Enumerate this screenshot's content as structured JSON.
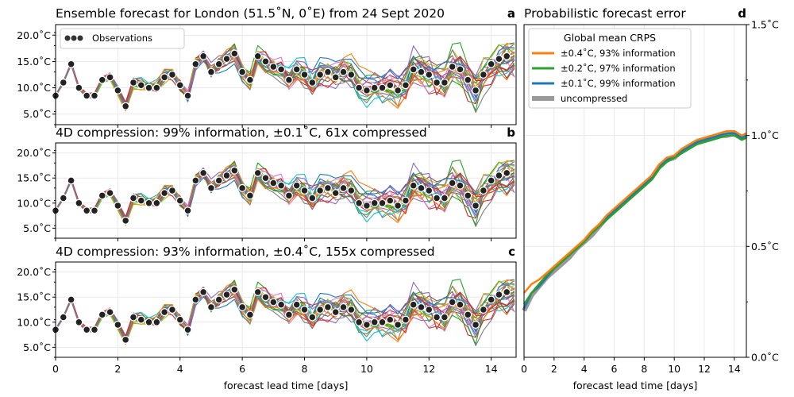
{
  "figure": {
    "shared_xlabel": "forecast lead time [days]",
    "colors": {
      "observations": "#222222",
      "crps_high": "#ff7f0e",
      "crps_mid": "#2ca02c",
      "crps_low": "#1f77b4",
      "crps_uncompressed": "#999999",
      "ensemble_palette": [
        "#1f77b4",
        "#ff7f0e",
        "#2ca02c",
        "#d62728",
        "#9467bd",
        "#8c564b",
        "#e377c2",
        "#7f7f7f",
        "#bcbd22",
        "#17becf"
      ]
    }
  },
  "chart_data": [
    {
      "type": "line",
      "panel": "a",
      "title": "Ensemble forecast for London (51.5˚N, 0˚E) from 24 Sept 2020",
      "xlabel": "",
      "ylabel": "",
      "xlim": [
        0,
        14.8
      ],
      "ylim": [
        3,
        22
      ],
      "yticks": [
        5,
        10,
        15,
        20
      ],
      "ytick_labels": [
        "5.0˚C",
        "10.0˚C",
        "15.0˚C",
        "20.0˚C"
      ],
      "xticks": [
        0,
        2,
        4,
        6,
        8,
        10,
        12,
        14
      ],
      "show_xtick_labels": false,
      "grid": true,
      "legend": {
        "position": "top-left",
        "entries": [
          "Observations"
        ]
      },
      "ensemble_members": 25,
      "observations": [
        [
          0.0,
          8.5
        ],
        [
          0.25,
          11.0
        ],
        [
          0.5,
          14.5
        ],
        [
          0.75,
          10.0
        ],
        [
          1.0,
          8.5
        ],
        [
          1.25,
          8.5
        ],
        [
          1.5,
          11.5
        ],
        [
          1.75,
          12.0
        ],
        [
          2.0,
          9.5
        ],
        [
          2.25,
          6.5
        ],
        [
          2.5,
          11.0
        ],
        [
          2.75,
          10.5
        ],
        [
          3.0,
          10.0
        ],
        [
          3.25,
          10.0
        ],
        [
          3.5,
          12.0
        ],
        [
          3.75,
          12.5
        ],
        [
          4.0,
          10.5
        ],
        [
          4.25,
          8.5
        ],
        [
          4.5,
          14.5
        ],
        [
          4.75,
          16.0
        ],
        [
          5.0,
          13.0
        ],
        [
          5.25,
          14.5
        ],
        [
          5.5,
          15.5
        ],
        [
          5.75,
          16.5
        ],
        [
          6.0,
          13.0
        ],
        [
          6.25,
          11.5
        ],
        [
          6.5,
          16.0
        ],
        [
          6.75,
          15.0
        ],
        [
          7.0,
          14.0
        ],
        [
          7.25,
          13.5
        ],
        [
          7.5,
          11.5
        ],
        [
          7.75,
          13.5
        ],
        [
          8.0,
          12.5
        ],
        [
          8.25,
          11.0
        ],
        [
          8.5,
          12.5
        ],
        [
          8.75,
          13.0
        ],
        [
          9.0,
          12.0
        ],
        [
          9.25,
          13.0
        ],
        [
          9.5,
          12.5
        ],
        [
          9.75,
          10.0
        ],
        [
          10.0,
          9.5
        ],
        [
          10.25,
          10.0
        ],
        [
          10.5,
          10.0
        ],
        [
          10.75,
          10.5
        ],
        [
          11.0,
          9.5
        ],
        [
          11.25,
          10.5
        ],
        [
          11.5,
          13.5
        ],
        [
          11.75,
          13.0
        ],
        [
          12.0,
          12.5
        ],
        [
          12.25,
          11.0
        ],
        [
          12.5,
          11.0
        ],
        [
          12.75,
          14.0
        ],
        [
          13.0,
          13.5
        ],
        [
          13.25,
          11.5
        ],
        [
          13.5,
          9.5
        ],
        [
          13.75,
          12.5
        ],
        [
          14.0,
          14.5
        ],
        [
          14.25,
          15.5
        ],
        [
          14.5,
          16.0
        ]
      ]
    },
    {
      "type": "line",
      "panel": "b",
      "title": "4D compression: 99% information, ±0.1˚C,  61x compressed",
      "xlabel": "",
      "ylabel": "",
      "xlim": [
        0,
        14.8
      ],
      "ylim": [
        3,
        22
      ],
      "yticks": [
        5,
        10,
        15,
        20
      ],
      "ytick_labels": [
        "5.0˚C",
        "10.0˚C",
        "15.0˚C",
        "20.0˚C"
      ],
      "xticks": [
        0,
        2,
        4,
        6,
        8,
        10,
        12,
        14
      ],
      "show_xtick_labels": false,
      "grid": true,
      "ensemble_members": 25,
      "observations": [
        [
          0.0,
          8.5
        ],
        [
          0.25,
          11.0
        ],
        [
          0.5,
          14.5
        ],
        [
          0.75,
          10.0
        ],
        [
          1.0,
          8.5
        ],
        [
          1.25,
          8.5
        ],
        [
          1.5,
          11.5
        ],
        [
          1.75,
          12.0
        ],
        [
          2.0,
          9.5
        ],
        [
          2.25,
          6.5
        ],
        [
          2.5,
          11.0
        ],
        [
          2.75,
          10.5
        ],
        [
          3.0,
          10.0
        ],
        [
          3.25,
          10.0
        ],
        [
          3.5,
          12.0
        ],
        [
          3.75,
          12.5
        ],
        [
          4.0,
          10.5
        ],
        [
          4.25,
          8.5
        ],
        [
          4.5,
          14.5
        ],
        [
          4.75,
          16.0
        ],
        [
          5.0,
          13.0
        ],
        [
          5.25,
          14.5
        ],
        [
          5.5,
          15.5
        ],
        [
          5.75,
          16.5
        ],
        [
          6.0,
          13.0
        ],
        [
          6.25,
          11.5
        ],
        [
          6.5,
          16.0
        ],
        [
          6.75,
          15.0
        ],
        [
          7.0,
          14.0
        ],
        [
          7.25,
          13.5
        ],
        [
          7.5,
          11.5
        ],
        [
          7.75,
          13.5
        ],
        [
          8.0,
          12.5
        ],
        [
          8.25,
          11.0
        ],
        [
          8.5,
          12.5
        ],
        [
          8.75,
          13.0
        ],
        [
          9.0,
          12.0
        ],
        [
          9.25,
          13.0
        ],
        [
          9.5,
          12.5
        ],
        [
          9.75,
          10.0
        ],
        [
          10.0,
          9.5
        ],
        [
          10.25,
          10.0
        ],
        [
          10.5,
          10.0
        ],
        [
          10.75,
          10.5
        ],
        [
          11.0,
          9.5
        ],
        [
          11.25,
          10.5
        ],
        [
          11.5,
          13.5
        ],
        [
          11.75,
          13.0
        ],
        [
          12.0,
          12.5
        ],
        [
          12.25,
          11.0
        ],
        [
          12.5,
          11.0
        ],
        [
          12.75,
          14.0
        ],
        [
          13.0,
          13.5
        ],
        [
          13.25,
          11.5
        ],
        [
          13.5,
          9.5
        ],
        [
          13.75,
          12.5
        ],
        [
          14.0,
          14.5
        ],
        [
          14.25,
          15.5
        ],
        [
          14.5,
          16.0
        ]
      ]
    },
    {
      "type": "line",
      "panel": "c",
      "title": "4D compression: 93% information, ±0.4˚C, 155x compressed",
      "xlabel": "forecast lead time [days]",
      "ylabel": "",
      "xlim": [
        0,
        14.8
      ],
      "ylim": [
        3,
        22
      ],
      "yticks": [
        5,
        10,
        15,
        20
      ],
      "ytick_labels": [
        "5.0˚C",
        "10.0˚C",
        "15.0˚C",
        "20.0˚C"
      ],
      "xticks": [
        0,
        2,
        4,
        6,
        8,
        10,
        12,
        14
      ],
      "xtick_labels": [
        "0",
        "2",
        "4",
        "6",
        "8",
        "10",
        "12",
        "14"
      ],
      "show_xtick_labels": true,
      "grid": true,
      "ensemble_members": 25,
      "observations": [
        [
          0.0,
          8.5
        ],
        [
          0.25,
          11.0
        ],
        [
          0.5,
          14.5
        ],
        [
          0.75,
          10.0
        ],
        [
          1.0,
          8.5
        ],
        [
          1.25,
          8.5
        ],
        [
          1.5,
          11.5
        ],
        [
          1.75,
          12.0
        ],
        [
          2.0,
          9.5
        ],
        [
          2.25,
          6.5
        ],
        [
          2.5,
          11.0
        ],
        [
          2.75,
          10.5
        ],
        [
          3.0,
          10.0
        ],
        [
          3.25,
          10.0
        ],
        [
          3.5,
          12.0
        ],
        [
          3.75,
          12.5
        ],
        [
          4.0,
          10.5
        ],
        [
          4.25,
          8.5
        ],
        [
          4.5,
          14.5
        ],
        [
          4.75,
          16.0
        ],
        [
          5.0,
          13.0
        ],
        [
          5.25,
          14.5
        ],
        [
          5.5,
          15.5
        ],
        [
          5.75,
          16.5
        ],
        [
          6.0,
          13.0
        ],
        [
          6.25,
          11.5
        ],
        [
          6.5,
          16.0
        ],
        [
          6.75,
          15.0
        ],
        [
          7.0,
          14.0
        ],
        [
          7.25,
          13.5
        ],
        [
          7.5,
          11.5
        ],
        [
          7.75,
          13.5
        ],
        [
          8.0,
          12.5
        ],
        [
          8.25,
          11.0
        ],
        [
          8.5,
          12.5
        ],
        [
          8.75,
          13.0
        ],
        [
          9.0,
          12.0
        ],
        [
          9.25,
          13.0
        ],
        [
          9.5,
          12.5
        ],
        [
          9.75,
          10.0
        ],
        [
          10.0,
          9.5
        ],
        [
          10.25,
          10.0
        ],
        [
          10.5,
          10.0
        ],
        [
          10.75,
          10.5
        ],
        [
          11.0,
          9.5
        ],
        [
          11.25,
          10.5
        ],
        [
          11.5,
          13.5
        ],
        [
          11.75,
          13.0
        ],
        [
          12.0,
          12.5
        ],
        [
          12.25,
          11.0
        ],
        [
          12.5,
          11.0
        ],
        [
          12.75,
          14.0
        ],
        [
          13.0,
          13.5
        ],
        [
          13.25,
          11.5
        ],
        [
          13.5,
          9.5
        ],
        [
          13.75,
          12.5
        ],
        [
          14.0,
          14.5
        ],
        [
          14.25,
          15.5
        ],
        [
          14.5,
          16.0
        ]
      ]
    },
    {
      "type": "line",
      "panel": "d",
      "title": "Probabilistic forecast error",
      "xlabel": "forecast lead time [days]",
      "ylabel": "",
      "xlim": [
        0,
        14.8
      ],
      "ylim": [
        0,
        1.5
      ],
      "yaxis_side": "right",
      "yticks": [
        0,
        0.5,
        1.0,
        1.5
      ],
      "ytick_labels": [
        "0.0˚C",
        "0.5˚C",
        "1.0˚C",
        "1.5˚C"
      ],
      "xticks": [
        0,
        2,
        4,
        6,
        8,
        10,
        12,
        14
      ],
      "xtick_labels": [
        "0",
        "2",
        "4",
        "6",
        "8",
        "10",
        "12",
        "14"
      ],
      "grid": true,
      "legend": {
        "position": "top-left",
        "title": "Global mean CRPS",
        "entries": [
          "±0.4˚C, 93% information",
          "±0.2˚C, 97% information",
          "±0.1˚C, 99% information",
          "uncompressed"
        ]
      },
      "x": [
        0.0,
        0.5,
        1.0,
        1.5,
        2.0,
        2.5,
        3.0,
        3.5,
        4.0,
        4.5,
        5.0,
        5.5,
        6.0,
        6.5,
        7.0,
        7.5,
        8.0,
        8.5,
        9.0,
        9.5,
        10.0,
        10.5,
        11.0,
        11.5,
        12.0,
        12.5,
        13.0,
        13.5,
        14.0,
        14.5,
        14.8
      ],
      "series": [
        {
          "name": "uncompressed",
          "values": [
            0.21,
            0.28,
            0.32,
            0.36,
            0.39,
            0.42,
            0.45,
            0.49,
            0.52,
            0.55,
            0.59,
            0.63,
            0.66,
            0.69,
            0.72,
            0.75,
            0.78,
            0.81,
            0.86,
            0.89,
            0.9,
            0.93,
            0.95,
            0.97,
            0.98,
            0.99,
            1.0,
            1.0,
            1.01,
            0.99,
            1.0
          ]
        },
        {
          "name": "±0.1˚C, 99% information",
          "values": [
            0.22,
            0.29,
            0.32,
            0.36,
            0.4,
            0.43,
            0.46,
            0.49,
            0.52,
            0.56,
            0.59,
            0.63,
            0.66,
            0.69,
            0.72,
            0.75,
            0.78,
            0.81,
            0.86,
            0.89,
            0.91,
            0.93,
            0.95,
            0.97,
            0.98,
            0.99,
            1.0,
            1.01,
            1.01,
            0.99,
            1.0
          ]
        },
        {
          "name": "±0.2˚C, 97% information",
          "values": [
            0.24,
            0.29,
            0.33,
            0.37,
            0.4,
            0.43,
            0.46,
            0.49,
            0.52,
            0.56,
            0.59,
            0.62,
            0.65,
            0.68,
            0.71,
            0.74,
            0.77,
            0.8,
            0.85,
            0.88,
            0.9,
            0.92,
            0.94,
            0.96,
            0.97,
            0.98,
            0.99,
            1.0,
            1.0,
            0.98,
            0.99
          ]
        },
        {
          "name": "±0.4˚C, 93% information",
          "values": [
            0.29,
            0.33,
            0.35,
            0.38,
            0.41,
            0.44,
            0.47,
            0.5,
            0.53,
            0.57,
            0.6,
            0.64,
            0.67,
            0.7,
            0.73,
            0.76,
            0.79,
            0.82,
            0.87,
            0.9,
            0.91,
            0.94,
            0.96,
            0.98,
            0.99,
            1.0,
            1.01,
            1.02,
            1.02,
            1.0,
            1.01
          ]
        }
      ]
    }
  ]
}
